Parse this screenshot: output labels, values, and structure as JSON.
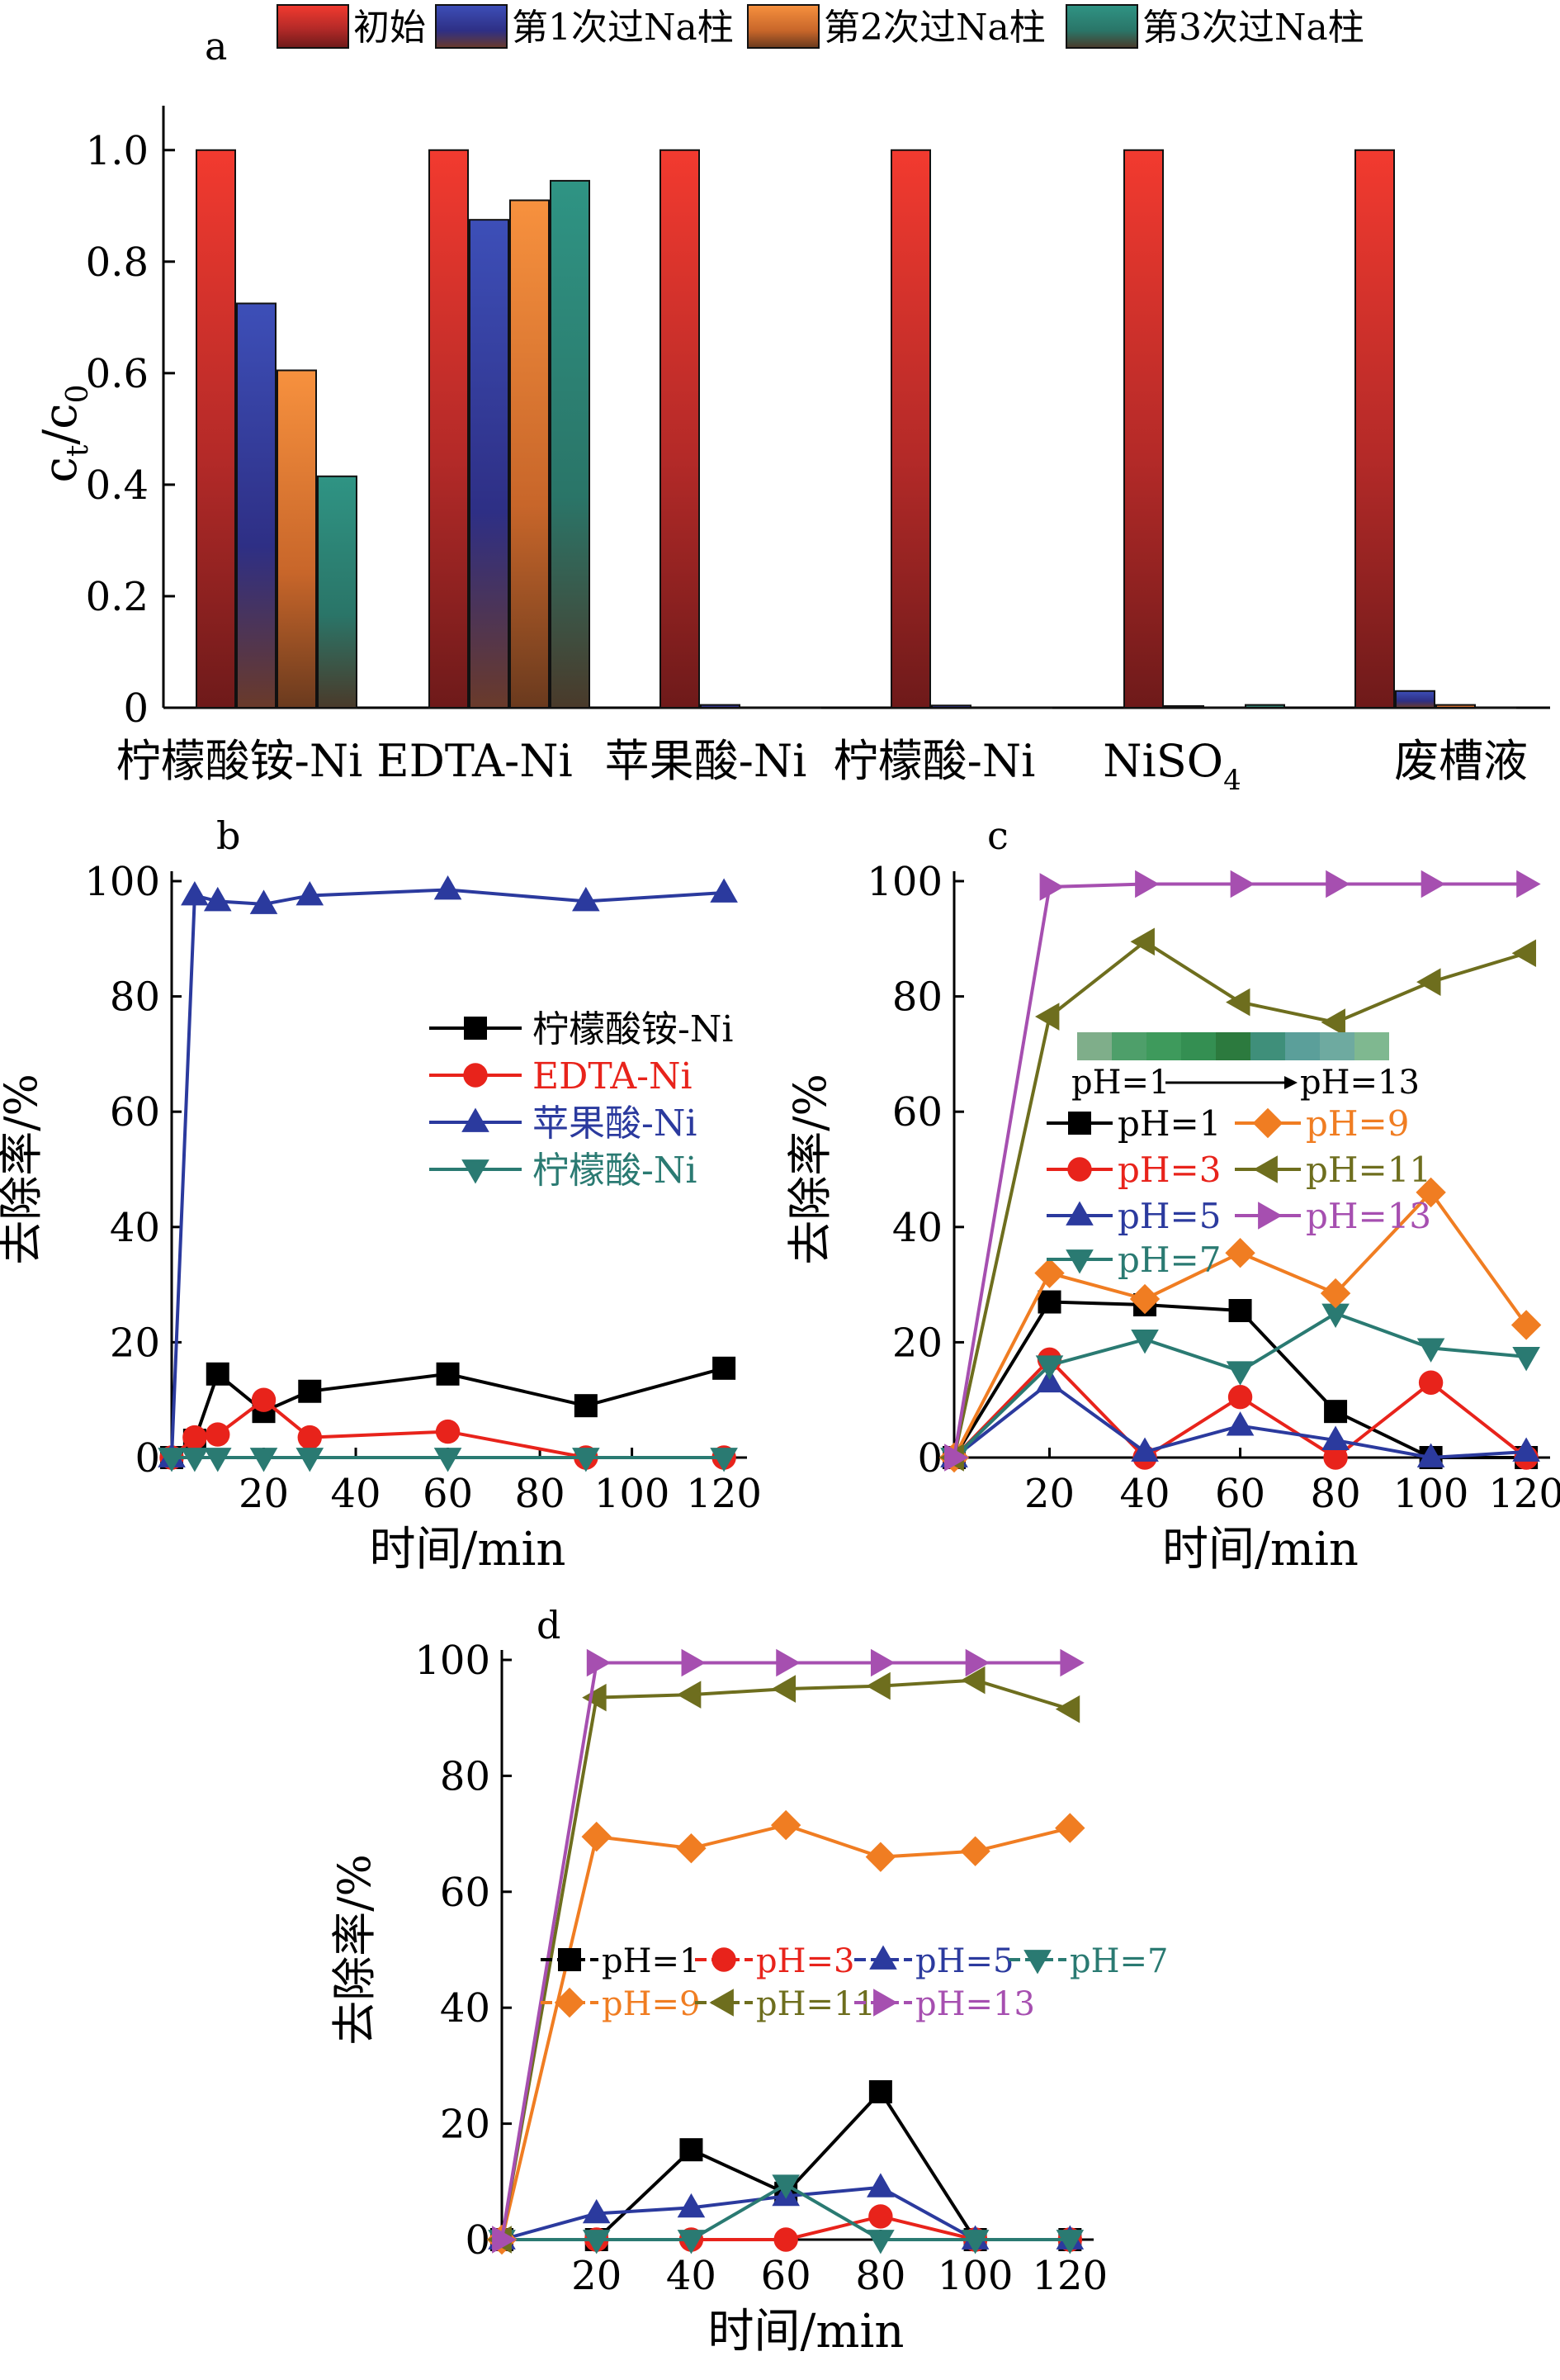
{
  "chart_data": [
    {
      "panel_label": "a",
      "type": "bar",
      "ylabel_main": "c",
      "ylabel_sub_t": "t",
      "ylabel_slash": "/c",
      "ylabel_sub_0": "0",
      "ylim": [
        0,
        1.05
      ],
      "yticks": [
        "0",
        "0.2",
        "0.4",
        "0.6",
        "0.8",
        "1.0"
      ],
      "categories": [
        "柠檬酸铵-Ni",
        "EDTA-Ni",
        "苹果酸-Ni",
        "柠檬酸-Ni",
        "NiSO",
        "废槽液"
      ],
      "nisO4_subscript": "4",
      "legend_position": "top",
      "series": [
        {
          "name": "初始",
          "color": "#e8322b",
          "values": [
            1.0,
            1.0,
            1.0,
            1.0,
            1.0,
            1.0
          ]
        },
        {
          "name": "第1次过Na柱",
          "color": "#3a46a8",
          "values": [
            0.725,
            0.875,
            0.005,
            0.004,
            0.003,
            0.03
          ]
        },
        {
          "name": "第2次过Na柱",
          "color": "#f28a3c",
          "values": [
            0.605,
            0.91,
            0.0,
            0.0,
            0.0,
            0.005
          ]
        },
        {
          "name": "第3次过Na柱",
          "color": "#2f8a7e",
          "values": [
            0.415,
            0.945,
            0.0,
            0.0,
            0.005,
            0.0
          ]
        }
      ]
    },
    {
      "panel_label": "b",
      "type": "line",
      "xlabel": "时间/min",
      "ylabel": "去除率/%",
      "xlim": [
        0,
        125
      ],
      "ylim": [
        0,
        100
      ],
      "xticks": [
        "20",
        "40",
        "60",
        "80",
        "100",
        "120"
      ],
      "yticks": [
        "0",
        "20",
        "40",
        "60",
        "80",
        "100"
      ],
      "legend_position": "center-right",
      "series": [
        {
          "name": "柠檬酸铵-Ni",
          "color": "#000000",
          "marker": "square",
          "x": [
            0,
            5,
            10,
            20,
            30,
            60,
            90,
            120
          ],
          "y": [
            0,
            3,
            14.5,
            8,
            11.5,
            14.5,
            9,
            15.5
          ]
        },
        {
          "name": "EDTA-Ni",
          "color": "#e8231b",
          "marker": "circle",
          "x": [
            0,
            5,
            10,
            20,
            30,
            60,
            90,
            120
          ],
          "y": [
            0,
            3.5,
            4,
            10,
            3.5,
            4.5,
            0,
            0
          ]
        },
        {
          "name": "苹果酸-Ni",
          "color": "#2b3a9e",
          "marker": "triangle-up",
          "x": [
            0,
            5,
            10,
            20,
            30,
            60,
            90,
            120
          ],
          "y": [
            0,
            97.5,
            96.5,
            96,
            97.5,
            98.5,
            96.5,
            98
          ]
        },
        {
          "name": "柠檬酸-Ni",
          "color": "#2a7a72",
          "marker": "triangle-down",
          "x": [
            0,
            5,
            10,
            20,
            30,
            60,
            90,
            120
          ],
          "y": [
            0,
            0,
            0,
            0,
            0,
            0,
            0,
            0
          ]
        }
      ]
    },
    {
      "panel_label": "c",
      "type": "line",
      "xlabel": "时间/min",
      "ylabel": "去除率/%",
      "xlim": [
        0,
        125
      ],
      "ylim": [
        0,
        100
      ],
      "xticks": [
        "20",
        "40",
        "60",
        "80",
        "100",
        "120"
      ],
      "yticks": [
        "0",
        "20",
        "40",
        "60",
        "80",
        "100"
      ],
      "inset_left": "pH=1",
      "inset_right": "pH=13",
      "inset_colors": [
        "#7fae8a",
        "#4e9f6a",
        "#3e9a5c",
        "#348f52",
        "#2c7a3e",
        "#3f8f7a",
        "#5b9f9a",
        "#6eaaa0",
        "#7fb890"
      ],
      "legend_position": "center",
      "series": [
        {
          "name": "pH=1",
          "color": "#000000",
          "marker": "square",
          "x": [
            0,
            20,
            40,
            60,
            80,
            100,
            120
          ],
          "y": [
            0,
            27,
            26.5,
            25.5,
            8,
            0,
            0
          ]
        },
        {
          "name": "pH=3",
          "color": "#e8231b",
          "marker": "circle",
          "x": [
            0,
            20,
            40,
            60,
            80,
            100,
            120
          ],
          "y": [
            0,
            17,
            0,
            10.5,
            0,
            13,
            0
          ]
        },
        {
          "name": "pH=5",
          "color": "#2b3a9e",
          "marker": "triangle-up",
          "x": [
            0,
            20,
            40,
            60,
            80,
            100,
            120
          ],
          "y": [
            0,
            13,
            1,
            5.5,
            3,
            0,
            1
          ]
        },
        {
          "name": "pH=7",
          "color": "#2a7a72",
          "marker": "triangle-down",
          "x": [
            0,
            20,
            40,
            60,
            80,
            100,
            120
          ],
          "y": [
            0,
            16,
            20.5,
            15,
            25,
            19,
            17.5
          ]
        },
        {
          "name": "pH=9",
          "color": "#f07d22",
          "marker": "diamond",
          "x": [
            0,
            20,
            40,
            60,
            80,
            100,
            120
          ],
          "y": [
            0,
            32,
            27.5,
            35.5,
            28.5,
            46,
            23
          ]
        },
        {
          "name": "pH=11",
          "color": "#6e6e1e",
          "marker": "triangle-left",
          "x": [
            0,
            20,
            40,
            60,
            80,
            100,
            120
          ],
          "y": [
            0,
            76.5,
            89.5,
            79,
            75.5,
            82.5,
            87.5
          ]
        },
        {
          "name": "pH=13",
          "color": "#a64fb0",
          "marker": "triangle-right",
          "x": [
            0,
            20,
            40,
            60,
            80,
            100,
            120
          ],
          "y": [
            0,
            99,
            99.5,
            99.5,
            99.5,
            99.5,
            99.5
          ]
        }
      ]
    },
    {
      "panel_label": "d",
      "type": "line",
      "xlabel": "时间/min",
      "ylabel": "去除率/%",
      "xlim": [
        0,
        125
      ],
      "ylim": [
        0,
        100
      ],
      "xticks": [
        "20",
        "40",
        "60",
        "80",
        "100",
        "120"
      ],
      "yticks": [
        "0",
        "20",
        "40",
        "60",
        "80",
        "100"
      ],
      "legend_position": "center",
      "series": [
        {
          "name": "pH=1",
          "color": "#000000",
          "marker": "square",
          "x": [
            0,
            20,
            40,
            60,
            80,
            100,
            120
          ],
          "y": [
            0,
            0,
            15.5,
            8,
            25.5,
            0,
            0
          ]
        },
        {
          "name": "pH=3",
          "color": "#e8231b",
          "marker": "circle",
          "x": [
            0,
            20,
            40,
            60,
            80,
            100,
            120
          ],
          "y": [
            0,
            0,
            0,
            0,
            4,
            0,
            0
          ]
        },
        {
          "name": "pH=5",
          "color": "#2b3a9e",
          "marker": "triangle-up",
          "x": [
            0,
            20,
            40,
            60,
            80,
            100,
            120
          ],
          "y": [
            0,
            4.5,
            5.5,
            7.5,
            9,
            0,
            0
          ]
        },
        {
          "name": "pH=7",
          "color": "#2a7a72",
          "marker": "triangle-down",
          "x": [
            0,
            20,
            40,
            60,
            80,
            100,
            120
          ],
          "y": [
            0,
            0,
            0,
            9.5,
            0,
            0,
            0
          ]
        },
        {
          "name": "pH=9",
          "color": "#f07d22",
          "marker": "diamond",
          "x": [
            0,
            20,
            40,
            60,
            80,
            100,
            120
          ],
          "y": [
            0,
            69.5,
            67.5,
            71.5,
            66,
            67,
            71
          ]
        },
        {
          "name": "pH=11",
          "color": "#6e6e1e",
          "marker": "triangle-left",
          "x": [
            0,
            20,
            40,
            60,
            80,
            100,
            120
          ],
          "y": [
            0,
            93.5,
            94,
            95,
            95.5,
            96.5,
            91.5
          ]
        },
        {
          "name": "pH=13",
          "color": "#a64fb0",
          "marker": "triangle-right",
          "x": [
            0,
            20,
            40,
            60,
            80,
            100,
            120
          ],
          "y": [
            0,
            99.5,
            99.5,
            99.5,
            99.5,
            99.5,
            99.5
          ]
        }
      ]
    }
  ]
}
